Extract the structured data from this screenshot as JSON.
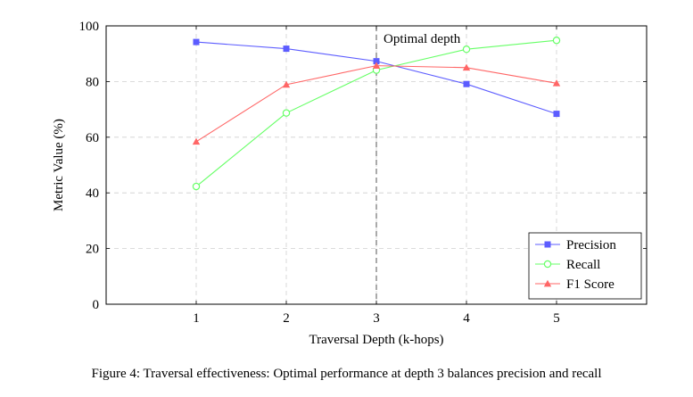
{
  "chart_data": {
    "type": "line",
    "title": "",
    "xlabel": "Traversal Depth (k-hops)",
    "ylabel": "Metric Value (%)",
    "x": [
      1,
      2,
      3,
      4,
      5
    ],
    "xlim": [
      0,
      6
    ],
    "ylim": [
      0,
      100
    ],
    "xticks": [
      1,
      2,
      3,
      4,
      5
    ],
    "yticks": [
      0,
      20,
      40,
      60,
      80,
      100
    ],
    "grid": true,
    "legend_position": "bottom-right",
    "series": [
      {
        "name": "Precision",
        "values": [
          94.2,
          91.8,
          87.3,
          79.1,
          68.4
        ],
        "color": "#5c5cff",
        "marker": "square"
      },
      {
        "name": "Recall",
        "values": [
          42.3,
          68.7,
          84.1,
          91.6,
          94.8
        ],
        "color": "#66ff66",
        "marker": "circle-open"
      },
      {
        "name": "F1 Score",
        "values": [
          58.4,
          78.9,
          85.7,
          85.0,
          79.4
        ],
        "color": "#ff6666",
        "marker": "triangle"
      }
    ],
    "annotations": [
      {
        "text": "Optimal depth",
        "x": 3,
        "type": "vertical-dashed-line"
      }
    ]
  },
  "caption": "Figure 4: Traversal effectiveness: Optimal performance at depth 3 balances precision and recall"
}
